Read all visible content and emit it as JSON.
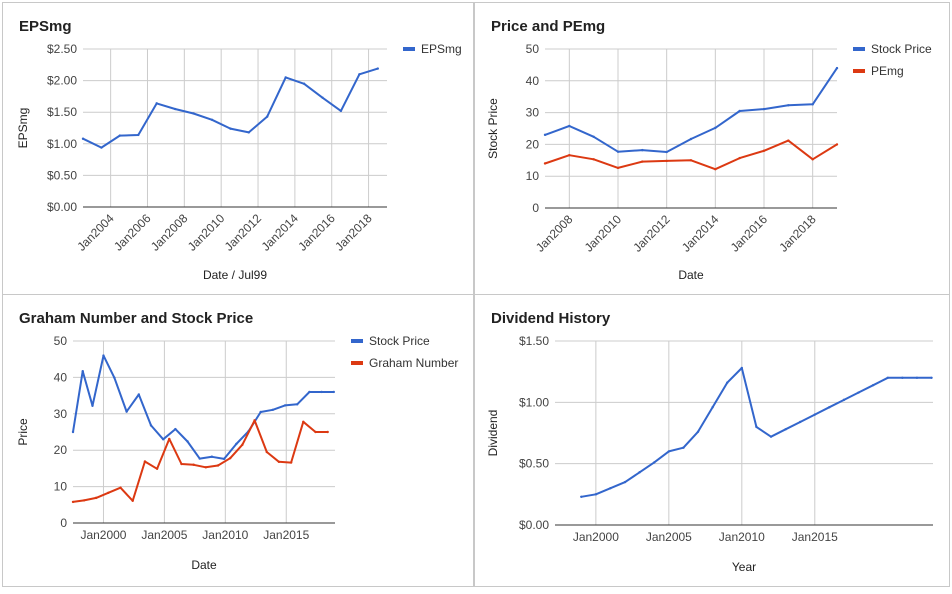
{
  "chart_data": [
    {
      "id": "eps",
      "type": "line",
      "title": "EPSmg",
      "xlabel": "Date / Jul99",
      "ylabel": "EPSmg",
      "x_axis": "time",
      "x_tick_style": "rotated",
      "xlim": [
        2002.5,
        2019.0
      ],
      "x_ticks": [
        {
          "x": 2004,
          "label": "Jan2004"
        },
        {
          "x": 2006,
          "label": "Jan2006"
        },
        {
          "x": 2008,
          "label": "Jan2008"
        },
        {
          "x": 2010,
          "label": "Jan2010"
        },
        {
          "x": 2012,
          "label": "Jan2012"
        },
        {
          "x": 2014,
          "label": "Jan2014"
        },
        {
          "x": 2016,
          "label": "Jan2016"
        },
        {
          "x": 2018,
          "label": "Jan2018"
        }
      ],
      "ylim": [
        0,
        2.5
      ],
      "y_ticks": [
        {
          "y": 0,
          "label": "$0.00"
        },
        {
          "y": 0.5,
          "label": "$0.50"
        },
        {
          "y": 1.0,
          "label": "$1.00"
        },
        {
          "y": 1.5,
          "label": "$1.50"
        },
        {
          "y": 2.0,
          "label": "$2.00"
        },
        {
          "y": 2.5,
          "label": "$2.50"
        }
      ],
      "legend": "right",
      "series": [
        {
          "name": "EPSmg",
          "color": "#3366cc",
          "x": [
            2002.5,
            2003.5,
            2004.5,
            2005.5,
            2006.5,
            2007.5,
            2008.5,
            2009.5,
            2010.5,
            2011.5,
            2012.5,
            2013.5,
            2014.5,
            2015.5,
            2016.5,
            2017.5,
            2018.5
          ],
          "y": [
            1.08,
            0.94,
            1.13,
            1.14,
            1.64,
            1.55,
            1.48,
            1.38,
            1.24,
            1.18,
            1.43,
            2.05,
            1.95,
            1.73,
            1.52,
            2.1,
            2.19
          ]
        }
      ]
    },
    {
      "id": "price_pe",
      "type": "line",
      "title": "Price and PEmg",
      "xlabel": "Date",
      "ylabel": "Stock Price",
      "x_axis": "time",
      "x_tick_style": "rotated",
      "xlim": [
        2007.0,
        2019.0
      ],
      "x_ticks": [
        {
          "x": 2008,
          "label": "Jan2008"
        },
        {
          "x": 2010,
          "label": "Jan2010"
        },
        {
          "x": 2012,
          "label": "Jan2012"
        },
        {
          "x": 2014,
          "label": "Jan2014"
        },
        {
          "x": 2016,
          "label": "Jan2016"
        },
        {
          "x": 2018,
          "label": "Jan2018"
        }
      ],
      "ylim": [
        0,
        50
      ],
      "y_ticks": [
        {
          "y": 0,
          "label": "0"
        },
        {
          "y": 10,
          "label": "10"
        },
        {
          "y": 20,
          "label": "20"
        },
        {
          "y": 30,
          "label": "30"
        },
        {
          "y": 40,
          "label": "40"
        },
        {
          "y": 50,
          "label": "50"
        }
      ],
      "legend": "right",
      "series": [
        {
          "name": "Stock Price",
          "color": "#3366cc",
          "x": [
            2007.0,
            2008.0,
            2009.0,
            2010.0,
            2011.0,
            2012.0,
            2013.0,
            2014.0,
            2015.0,
            2016.0,
            2017.0,
            2018.0,
            2019.0
          ],
          "y": [
            23.0,
            25.8,
            22.4,
            17.7,
            18.2,
            17.6,
            21.7,
            25.2,
            30.5,
            31.1,
            32.3,
            32.6,
            44.0
          ]
        },
        {
          "name": "PEmg",
          "color": "#dc3912",
          "x": [
            2007.0,
            2008.0,
            2009.0,
            2010.0,
            2011.0,
            2012.0,
            2013.0,
            2014.0,
            2015.0,
            2016.0,
            2017.0,
            2018.0,
            2019.0
          ],
          "y": [
            14.0,
            16.6,
            15.3,
            12.6,
            14.6,
            14.8,
            15.0,
            12.2,
            15.7,
            18.0,
            21.2,
            15.3,
            20.0
          ]
        }
      ]
    },
    {
      "id": "graham",
      "type": "line",
      "title": "Graham Number and Stock Price",
      "xlabel": "Date",
      "ylabel": "Price",
      "x_axis": "time",
      "x_tick_style": "flat",
      "xlim": [
        1997.5,
        2019.0
      ],
      "x_ticks": [
        {
          "x": 2000,
          "label": "Jan2000"
        },
        {
          "x": 2005,
          "label": "Jan2005"
        },
        {
          "x": 2010,
          "label": "Jan2010"
        },
        {
          "x": 2015,
          "label": "Jan2015"
        }
      ],
      "ylim": [
        0,
        50
      ],
      "y_ticks": [
        {
          "y": 0,
          "label": "0"
        },
        {
          "y": 10,
          "label": "10"
        },
        {
          "y": 20,
          "label": "20"
        },
        {
          "y": 30,
          "label": "30"
        },
        {
          "y": 40,
          "label": "40"
        },
        {
          "y": 50,
          "label": "50"
        }
      ],
      "legend": "right",
      "series": [
        {
          "name": "Stock Price",
          "color": "#3366cc",
          "x": [
            1997.5,
            1998.3,
            1999.1,
            2000.0,
            2000.9,
            2001.9,
            2002.9,
            2003.9,
            2004.9,
            2005.9,
            2006.9,
            2007.9,
            2008.9,
            2009.9,
            2010.9,
            2011.9,
            2012.9,
            2013.9,
            2014.9,
            2015.9,
            2016.9,
            2017.9,
            2018.9
          ],
          "y": [
            25.0,
            41.7,
            32.2,
            46.0,
            39.9,
            30.6,
            35.3,
            26.8,
            23.0,
            25.8,
            22.4,
            17.7,
            18.2,
            17.6,
            21.7,
            25.2,
            30.5,
            31.1,
            32.3,
            32.6,
            36.0,
            36.0,
            36.0
          ]
        },
        {
          "name": "Graham Number",
          "color": "#dc3912",
          "x": [
            1997.5,
            1998.4,
            1999.4,
            2000.4,
            2001.4,
            2002.4,
            2003.4,
            2004.4,
            2005.4,
            2006.4,
            2007.4,
            2008.4,
            2009.4,
            2010.4,
            2011.4,
            2012.4,
            2013.4,
            2014.4,
            2015.4,
            2016.4,
            2017.4,
            2018.4
          ],
          "y": [
            5.8,
            6.2,
            6.9,
            8.3,
            9.7,
            6.1,
            16.9,
            14.9,
            23.1,
            16.2,
            16.0,
            15.3,
            15.8,
            17.8,
            21.5,
            28.2,
            19.5,
            16.8,
            16.6,
            27.8,
            25.0,
            25.0
          ]
        }
      ]
    },
    {
      "id": "dividend",
      "type": "line",
      "title": "Dividend History",
      "xlabel": "Year",
      "ylabel": "Dividend",
      "x_axis": "time",
      "x_tick_style": "flat",
      "xlim": [
        1997.2,
        2023.1
      ],
      "x_ticks": [
        {
          "x": 2000,
          "label": "Jan2000"
        },
        {
          "x": 2005,
          "label": "Jan2005"
        },
        {
          "x": 2010,
          "label": "Jan2010"
        },
        {
          "x": 2015,
          "label": "Jan2015"
        }
      ],
      "ylim": [
        0,
        1.5
      ],
      "y_ticks": [
        {
          "y": 0,
          "label": "$0.00"
        },
        {
          "y": 0.5,
          "label": "$0.50"
        },
        {
          "y": 1.0,
          "label": "$1.00"
        },
        {
          "y": 1.5,
          "label": "$1.50"
        }
      ],
      "legend": "none",
      "series": [
        {
          "name": "",
          "color": "#3366cc",
          "x": [
            1999.0,
            2000.0,
            2001.0,
            2002.0,
            2003.0,
            2004.0,
            2005.0,
            2006.0,
            2007.0,
            2008.0,
            2009.0,
            2010.0,
            2011.0,
            2012.0,
            2013.0,
            2014.0,
            2015.0,
            2016.0,
            2017.0,
            2018.0,
            2019.0,
            2020.0,
            2021.0,
            2022.0,
            2023.0
          ],
          "y": [
            0.23,
            0.25,
            0.3,
            0.35,
            0.43,
            0.51,
            0.6,
            0.63,
            0.76,
            0.96,
            1.16,
            1.28,
            0.8,
            0.72,
            0.78,
            0.84,
            0.9,
            0.96,
            1.02,
            1.08,
            1.14,
            1.2,
            1.2,
            1.2,
            1.2
          ]
        }
      ]
    }
  ]
}
